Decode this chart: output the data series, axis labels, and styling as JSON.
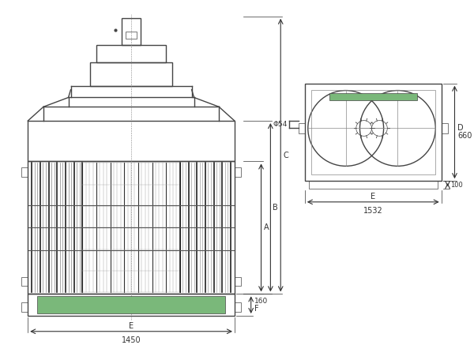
{
  "bg_color": "#ffffff",
  "line_color": "#444444",
  "light_line_color": "#888888",
  "green_color": "#7ab87a",
  "dim_color": "#333333",
  "lw_main": 1.0,
  "lw_thin": 0.5,
  "lw_thick": 1.5,
  "font_size": 7,
  "title_font_size": 8,
  "dims": {
    "E_front": "1450",
    "F_height": "160",
    "E_side": "1532",
    "D_height": "660",
    "side_small": "100",
    "phi": "Φ54"
  }
}
